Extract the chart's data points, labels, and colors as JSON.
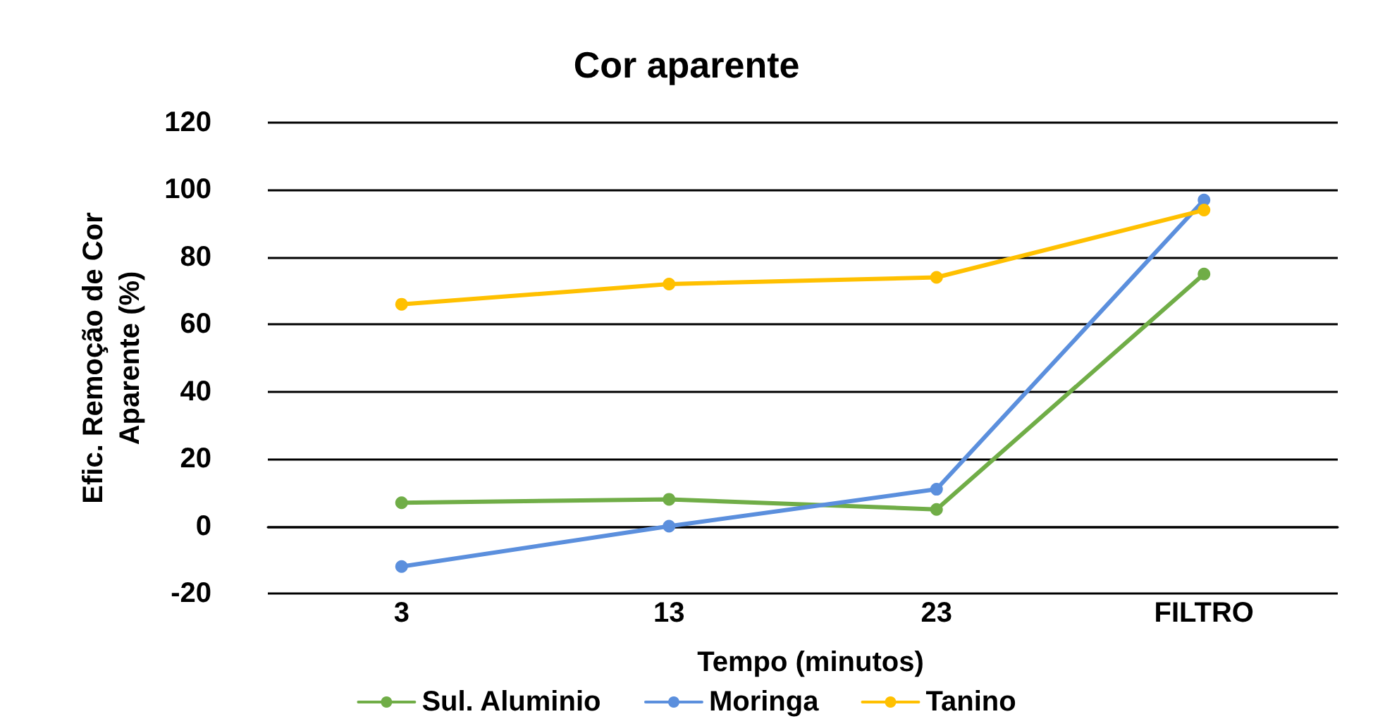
{
  "chart_data": {
    "type": "line",
    "title": "Cor aparente",
    "xlabel": "Tempo (minutos)",
    "ylabel": "Efic. Remoção de Cor\nAparente (%)",
    "categories": [
      "3",
      "13",
      "23",
      "FILTRO"
    ],
    "series": [
      {
        "name": "Sul. Aluminio",
        "color": "#70ad47",
        "values": [
          7,
          8,
          5,
          75
        ]
      },
      {
        "name": "Moringa",
        "color": "#5b8fdd",
        "values": [
          -12,
          0,
          11,
          97
        ]
      },
      {
        "name": "Tanino",
        "color": "#ffc000",
        "values": [
          66,
          72,
          74,
          94
        ]
      }
    ],
    "ylim": [
      -20,
      120
    ],
    "yticks": [
      -20,
      0,
      20,
      40,
      60,
      80,
      100,
      120
    ],
    "grid": "y",
    "legend": "bottom",
    "marker": "circle",
    "line_style": "solid"
  }
}
